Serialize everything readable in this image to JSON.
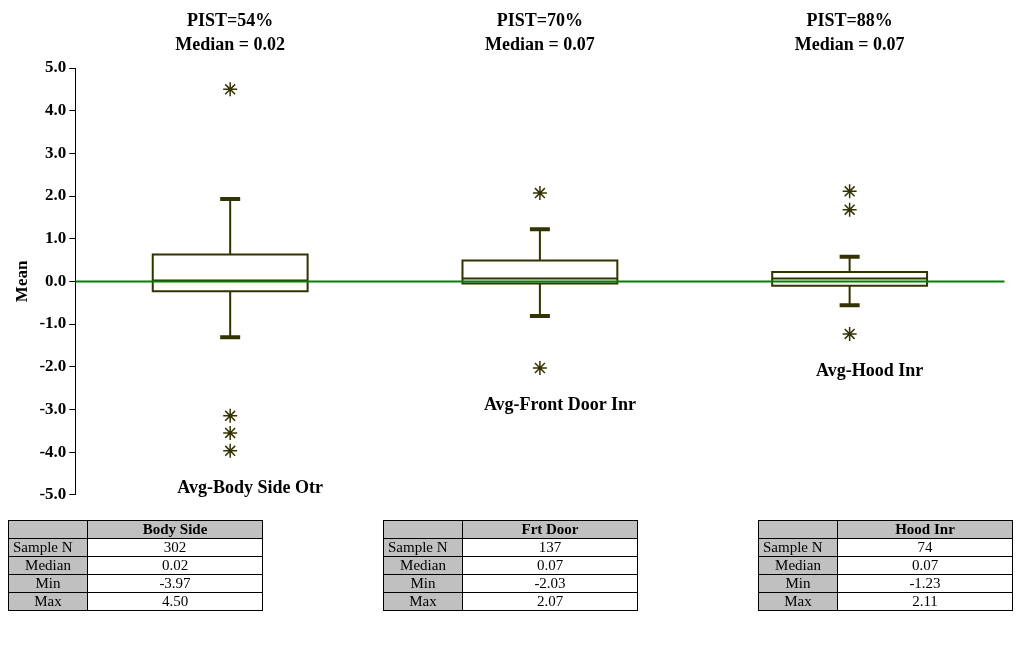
{
  "chart_data": {
    "type": "box",
    "ylabel": "Mean",
    "categories": [
      "Avg-Body Side Otr",
      "Avg-Front Door Inr",
      "Avg-Hood Inr"
    ],
    "series": [
      {
        "color": "#333300",
        "boxes": [
          {
            "low": -1.31,
            "q1": -0.23,
            "median": 0.02,
            "q3": 0.63,
            "high": 1.93,
            "outliers": [
              4.5,
              -3.15,
              -3.55,
              -3.97
            ]
          },
          {
            "low": -0.81,
            "q1": -0.05,
            "median": 0.07,
            "q3": 0.49,
            "high": 1.22,
            "outliers": [
              2.07,
              -2.03
            ]
          },
          {
            "low": -0.56,
            "q1": -0.1,
            "median": 0.07,
            "q3": 0.22,
            "high": 0.58,
            "outliers": [
              2.11,
              1.68,
              -1.23
            ]
          }
        ]
      }
    ],
    "ylim": [
      -5,
      5
    ],
    "yticks": [
      {
        "value": -5,
        "label": "-5.0"
      },
      {
        "value": -4,
        "label": "-4.0"
      },
      {
        "value": -3,
        "label": "-3.0"
      },
      {
        "value": -2,
        "label": "-2.0"
      },
      {
        "value": -1,
        "label": "-1.0"
      },
      {
        "value": 0,
        "label": "0.0"
      },
      {
        "value": 1,
        "label": "1.0"
      },
      {
        "value": 2,
        "label": "2.0"
      },
      {
        "value": 3,
        "label": "3.0"
      },
      {
        "value": 4,
        "label": "4.0"
      },
      {
        "value": 5,
        "label": "5.0"
      }
    ],
    "ref_lines": [
      {
        "axis": "y",
        "value": 0,
        "color": "#008000"
      }
    ],
    "marker": "star",
    "annotations": [
      "PIST=54%",
      "Median = 0.02",
      "PIST=70%",
      "Median = 0.07",
      "PIST=88%",
      "Median = 0.07",
      "Body Side",
      "Sample N",
      "302",
      "Median",
      "0.02",
      "Min",
      "-3.97",
      "Max",
      "4.50",
      "Frt Door",
      "Sample N",
      "137",
      "Median",
      "0.07",
      "Min",
      "-2.03",
      "Max",
      "2.07",
      "Hood Inr",
      "Sample N",
      "74",
      "Median",
      "0.07",
      "Min",
      "-1.23",
      "Max",
      "2.11"
    ]
  }
}
